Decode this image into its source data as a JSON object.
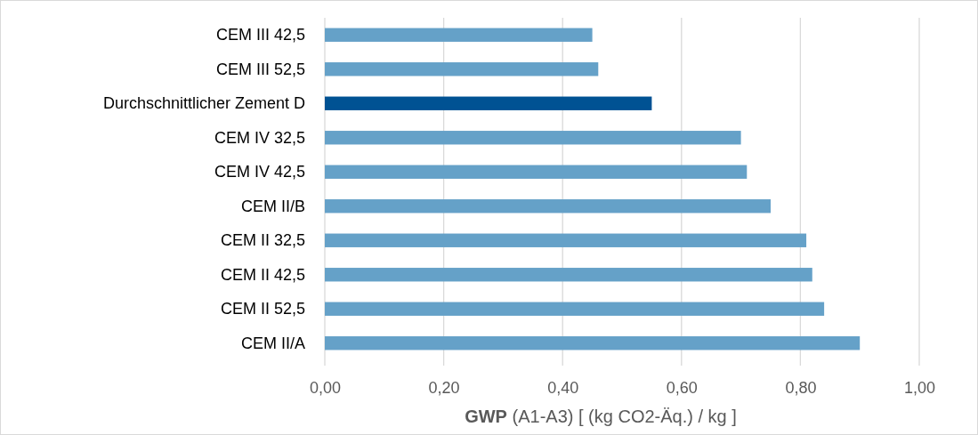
{
  "chart_data": {
    "type": "bar",
    "orientation": "horizontal",
    "xlabel": "GWP (A1-A3) [ (kg CO2-Äq.) / kg ]",
    "categories": [
      "CEM III 42,5",
      "CEM III 52,5",
      "Durchschnittlicher Zement D",
      "CEM IV 32,5",
      "CEM IV 42,5",
      "CEM II/B",
      "CEM II 32,5",
      "CEM II 42,5",
      "CEM II 52,5",
      "CEM II/A"
    ],
    "values": [
      0.45,
      0.46,
      0.55,
      0.7,
      0.71,
      0.75,
      0.81,
      0.82,
      0.84,
      0.9
    ],
    "colors": [
      "#65a1c8",
      "#65a1c8",
      "#005293",
      "#65a1c8",
      "#65a1c8",
      "#65a1c8",
      "#65a1c8",
      "#65a1c8",
      "#65a1c8",
      "#65a1c8"
    ],
    "xlim": [
      0,
      1
    ],
    "xticks": [
      {
        "value": 0,
        "label": "0,00"
      },
      {
        "value": 0.2,
        "label": "0,20"
      },
      {
        "value": 0.4,
        "label": "0,40"
      },
      {
        "value": 0.6,
        "label": "0,60"
      },
      {
        "value": 0.8,
        "label": "0,80"
      },
      {
        "value": 1,
        "label": "1,00"
      }
    ],
    "grid": "x"
  }
}
